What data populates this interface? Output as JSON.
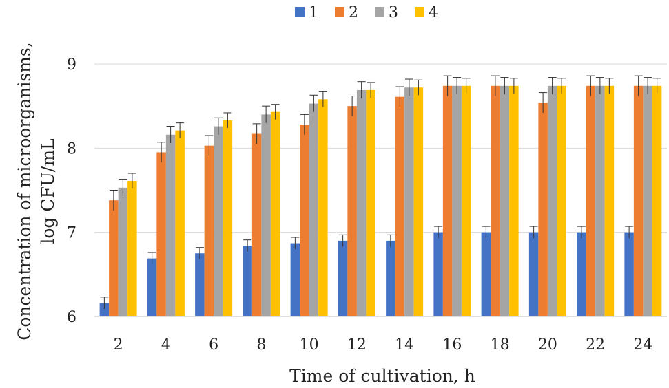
{
  "chart_data": {
    "type": "bar",
    "title": "",
    "xlabel": "Time of cultivation, h",
    "ylabel": [
      "Concentration  of microorganisms,",
      "log CFU/mL"
    ],
    "ylim": [
      6,
      9
    ],
    "yticks": [
      "6",
      "7",
      "8",
      "9"
    ],
    "grid": true,
    "legend_position": "top",
    "categories": [
      "2",
      "4",
      "6",
      "8",
      "10",
      "12",
      "14",
      "16",
      "18",
      "20",
      "22",
      "24"
    ],
    "series": [
      {
        "name": "1",
        "color": "#4472C4",
        "values": [
          6.16,
          6.69,
          6.75,
          6.84,
          6.87,
          6.9,
          6.9,
          7.0,
          7.0,
          7.0,
          7.0,
          7.0
        ],
        "errors": [
          0.07,
          0.07,
          0.07,
          0.07,
          0.07,
          0.07,
          0.07,
          0.07,
          0.07,
          0.07,
          0.07,
          0.07
        ]
      },
      {
        "name": "2",
        "color": "#ED7D31",
        "values": [
          7.38,
          7.95,
          8.03,
          8.17,
          8.28,
          8.5,
          8.61,
          8.74,
          8.74,
          8.54,
          8.74,
          8.74
        ],
        "errors": [
          0.12,
          0.12,
          0.12,
          0.12,
          0.12,
          0.12,
          0.12,
          0.12,
          0.12,
          0.12,
          0.12,
          0.12
        ]
      },
      {
        "name": "3",
        "color": "#A5A5A5",
        "values": [
          7.53,
          8.16,
          8.26,
          8.4,
          8.53,
          8.69,
          8.72,
          8.74,
          8.74,
          8.74,
          8.74,
          8.74
        ],
        "errors": [
          0.1,
          0.1,
          0.1,
          0.1,
          0.1,
          0.1,
          0.1,
          0.1,
          0.1,
          0.1,
          0.1,
          0.1
        ]
      },
      {
        "name": "4",
        "color": "#FFC000",
        "values": [
          7.61,
          8.21,
          8.33,
          8.43,
          8.58,
          8.69,
          8.72,
          8.74,
          8.74,
          8.74,
          8.74,
          8.74
        ],
        "errors": [
          0.09,
          0.09,
          0.09,
          0.09,
          0.09,
          0.09,
          0.09,
          0.09,
          0.09,
          0.09,
          0.09,
          0.09
        ]
      }
    ]
  }
}
